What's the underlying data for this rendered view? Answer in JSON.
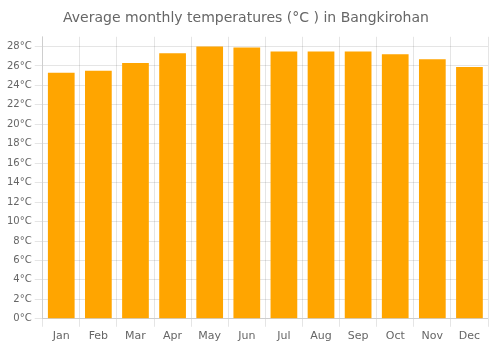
{
  "chart_data": {
    "type": "bar",
    "title": "Average monthly temperatures (°C ) in Bangkirohan",
    "categories": [
      "Jan",
      "Feb",
      "Mar",
      "Apr",
      "May",
      "Jun",
      "Jul",
      "Aug",
      "Sep",
      "Oct",
      "Nov",
      "Dec"
    ],
    "values": [
      25.3,
      25.5,
      26.3,
      27.3,
      28.0,
      27.9,
      27.5,
      27.5,
      27.5,
      27.2,
      26.7,
      25.9
    ],
    "color": "#FFA500",
    "ylim": [
      0,
      29
    ],
    "yticks": [
      {
        "value": 0,
        "label": "0°C"
      },
      {
        "value": 2,
        "label": "2°C"
      },
      {
        "value": 4,
        "label": "4°C"
      },
      {
        "value": 6,
        "label": "6°C"
      },
      {
        "value": 8,
        "label": "8°C"
      },
      {
        "value": 10,
        "label": "10°C"
      },
      {
        "value": 12,
        "label": "12°C"
      },
      {
        "value": 14,
        "label": "14°C"
      },
      {
        "value": 16,
        "label": "16°C"
      },
      {
        "value": 18,
        "label": "18°C"
      },
      {
        "value": 20,
        "label": "20°C"
      },
      {
        "value": 22,
        "label": "22°C"
      },
      {
        "value": 24,
        "label": "24°C"
      },
      {
        "value": 26,
        "label": "26°C"
      },
      {
        "value": 28,
        "label": "28°C"
      }
    ],
    "grid": true
  }
}
